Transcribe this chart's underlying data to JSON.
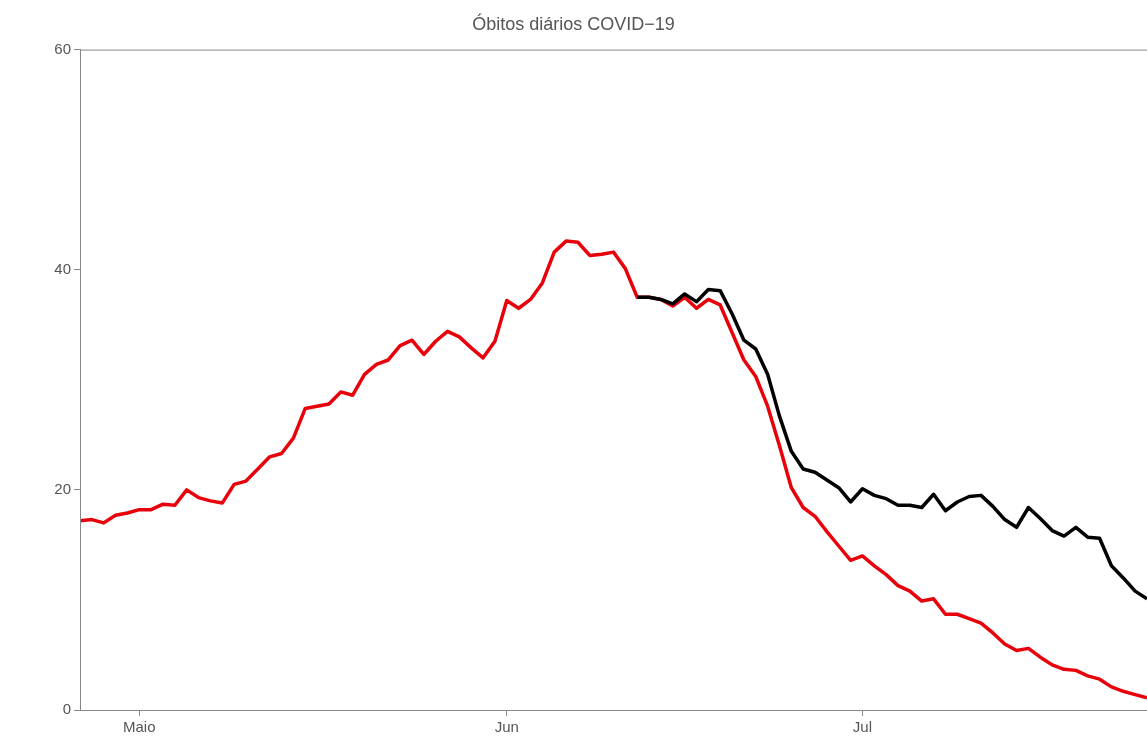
{
  "chart_data": {
    "type": "line",
    "title": "Óbitos diários COVID−19",
    "x": [
      "--04-26",
      "--04-27",
      "--04-28",
      "--04-29",
      "--04-30",
      "--05-01",
      "--05-02",
      "--05-03",
      "--05-04",
      "--05-05",
      "--05-06",
      "--05-07",
      "--05-08",
      "--05-09",
      "--05-10",
      "--05-11",
      "--05-12",
      "--05-13",
      "--05-14",
      "--05-15",
      "--05-16",
      "--05-17",
      "--05-18",
      "--05-19",
      "--05-20",
      "--05-21",
      "--05-22",
      "--05-23",
      "--05-24",
      "--05-25",
      "--05-26",
      "--05-27",
      "--05-28",
      "--05-29",
      "--05-30",
      "--05-31",
      "--06-01",
      "--06-02",
      "--06-03",
      "--06-04",
      "--06-05",
      "--06-06",
      "--06-07",
      "--06-08",
      "--06-09",
      "--06-10",
      "--06-11",
      "--06-12",
      "--06-13",
      "--06-14",
      "--06-15",
      "--06-16",
      "--06-17",
      "--06-18",
      "--06-19",
      "--06-20",
      "--06-21",
      "--06-22",
      "--06-23",
      "--06-24",
      "--06-25",
      "--06-26",
      "--06-27",
      "--06-28",
      "--06-29",
      "--06-30",
      "--07-01",
      "--07-02",
      "--07-03",
      "--07-04",
      "--07-05",
      "--07-06",
      "--07-07",
      "--07-08",
      "--07-09",
      "--07-10",
      "--07-11",
      "--07-12",
      "--07-13",
      "--07-14",
      "--07-15",
      "--07-16",
      "--07-17",
      "--07-18",
      "--07-19",
      "--07-20",
      "--07-21",
      "--07-22",
      "--07-23",
      "--07-24",
      "--07-25"
    ],
    "series": [
      {
        "color": "#000000",
        "x": [
          "--06-12",
          "--06-13",
          "--06-14",
          "--06-15",
          "--06-16",
          "--06-17",
          "--06-18",
          "--06-19",
          "--06-20",
          "--06-21",
          "--06-22",
          "--06-23",
          "--06-24",
          "--06-25",
          "--06-26",
          "--06-27",
          "--06-28",
          "--06-29",
          "--06-30",
          "--07-01",
          "--07-02",
          "--07-03",
          "--07-04",
          "--07-05",
          "--07-06",
          "--07-07",
          "--07-08",
          "--07-09",
          "--07-10",
          "--07-11",
          "--07-12",
          "--07-13",
          "--07-14",
          "--07-15",
          "--07-16",
          "--07-17",
          "--07-18",
          "--07-19",
          "--07-20",
          "--07-21",
          "--07-22",
          "--07-23",
          "--07-24",
          "--07-25"
        ],
        "values": [
          37.5,
          37.5,
          37.3,
          36.9,
          37.8,
          37.1,
          38.2,
          38.1,
          36.0,
          33.6,
          32.8,
          30.5,
          26.7,
          23.5,
          21.9,
          21.6,
          20.9,
          20.2,
          18.9,
          20.1,
          19.5,
          19.2,
          18.6,
          18.6,
          18.4,
          19.6,
          18.1,
          18.9,
          19.4,
          19.5,
          18.5,
          17.3,
          16.6,
          18.4,
          17.4,
          16.3,
          15.8,
          16.6,
          15.7,
          15.6,
          13.1,
          12.0,
          10.8,
          10.1
        ]
      },
      {
        "color": "#e8000b",
        "values": [
          17.2,
          17.3,
          17.0,
          17.7,
          17.9,
          18.2,
          18.2,
          18.7,
          18.6,
          20.0,
          19.3,
          19.0,
          18.8,
          20.5,
          20.8,
          21.9,
          23.0,
          23.3,
          24.7,
          27.4,
          27.6,
          27.8,
          28.9,
          28.6,
          30.5,
          31.4,
          31.8,
          33.1,
          33.6,
          32.3,
          33.5,
          34.4,
          33.9,
          32.9,
          32.0,
          33.5,
          37.2,
          36.5,
          37.3,
          38.8,
          41.6,
          42.6,
          42.5,
          41.3,
          41.4,
          41.6,
          40.1,
          37.5,
          37.5,
          37.3,
          36.7,
          37.5,
          36.5,
          37.3,
          36.8,
          34.3,
          31.8,
          30.3,
          27.6,
          24.0,
          20.2,
          18.4,
          17.6,
          16.2,
          14.9,
          13.6,
          14.0,
          13.1,
          12.3,
          11.3,
          10.8,
          9.9,
          10.1,
          8.7,
          8.7,
          8.3,
          7.9,
          7.0,
          6.0,
          5.4,
          5.6,
          4.8,
          4.1,
          3.7,
          3.6,
          3.1,
          2.8,
          2.1,
          1.7,
          1.4,
          1.1
        ]
      }
    ],
    "xlim": [
      "--04-26",
      "--07-25"
    ],
    "xticks": [
      {
        "value": "--05-01",
        "label": "Maio"
      },
      {
        "value": "--06-01",
        "label": "Jun"
      },
      {
        "value": "--07-01",
        "label": "Jul"
      }
    ],
    "ylim": [
      0,
      60
    ],
    "yticks": [
      0,
      20,
      40,
      60
    ],
    "grid": false,
    "legend": false,
    "marker": "none",
    "line_style": "solid"
  }
}
